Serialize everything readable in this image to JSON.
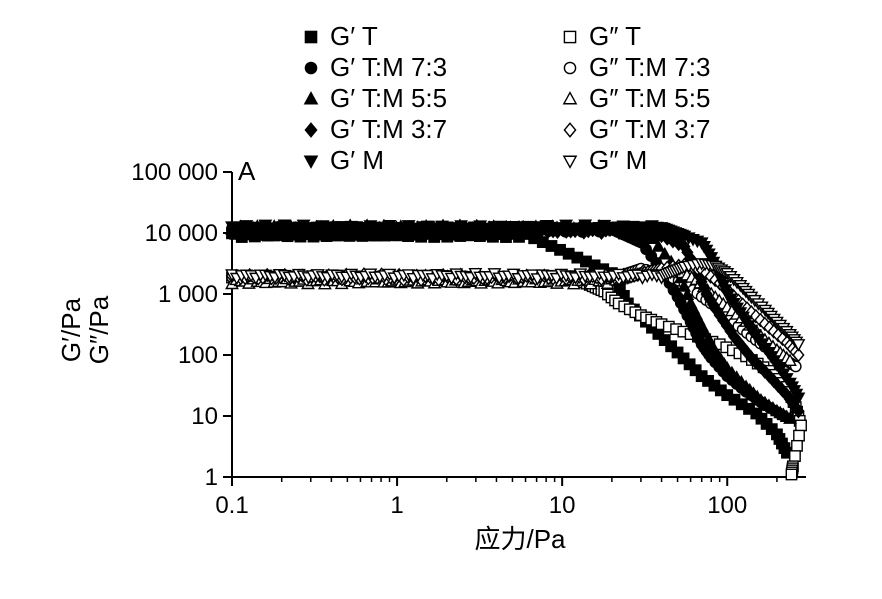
{
  "chart_data": {
    "type": "scatter",
    "panel_label": "A",
    "xlabel": "应力/Pa",
    "ylabel_lines": [
      "G′/Pa",
      "G″/Pa"
    ],
    "x_scale": "log",
    "y_scale": "log",
    "xlim": [
      0.1,
      300
    ],
    "ylim": [
      1,
      100000
    ],
    "x_ticks": [
      {
        "value": 0.1,
        "label": "0.1"
      },
      {
        "value": 1,
        "label": "1"
      },
      {
        "value": 10,
        "label": "10"
      },
      {
        "value": 100,
        "label": "100"
      }
    ],
    "y_ticks": [
      {
        "value": 1,
        "label": "1"
      },
      {
        "value": 10,
        "label": "10"
      },
      {
        "value": 100,
        "label": "100"
      },
      {
        "value": 1000,
        "label": "1 000"
      },
      {
        "value": 10000,
        "label": "10 000"
      },
      {
        "value": 100000,
        "label": "100 000"
      }
    ],
    "grid": false,
    "legend_position": "top",
    "series": [
      {
        "name": "G′ T",
        "marker": "square",
        "filled": true,
        "color": "#000000",
        "plateau": 9500,
        "plateau_end": 6,
        "break": 20,
        "break_value": 2200,
        "points": [
          [
            25,
            700
          ],
          [
            35,
            280
          ],
          [
            50,
            110
          ],
          [
            70,
            45
          ],
          [
            100,
            22
          ],
          [
            150,
            11
          ],
          [
            200,
            5
          ],
          [
            230,
            2.5
          ]
        ]
      },
      {
        "name": "G″ T",
        "marker": "square",
        "filled": false,
        "color": "#000000",
        "plateau": 1800,
        "plateau_end": 12,
        "break": 18,
        "break_value": 1100,
        "points": [
          [
            22,
            700
          ],
          [
            30,
            450
          ],
          [
            40,
            320
          ],
          [
            60,
            220
          ],
          [
            90,
            150
          ],
          [
            130,
            95
          ],
          [
            180,
            55
          ],
          [
            230,
            30
          ],
          [
            260,
            14
          ],
          [
            280,
            7
          ],
          [
            250,
            1.5
          ],
          [
            245,
            1.1
          ]
        ]
      },
      {
        "name": "G′ T:M 7:3",
        "marker": "circle",
        "filled": true,
        "color": "#000000",
        "plateau": 11500,
        "plateau_end": 20,
        "break": 30,
        "break_value": 7000,
        "points": [
          [
            40,
            2500
          ],
          [
            50,
            900
          ],
          [
            60,
            350
          ],
          [
            70,
            150
          ],
          [
            80,
            90
          ],
          [
            100,
            45
          ],
          [
            130,
            25
          ],
          [
            170,
            15
          ],
          [
            220,
            10
          ]
        ]
      },
      {
        "name": "G″ T:M 7:3",
        "marker": "circle",
        "filled": false,
        "color": "#000000",
        "plateau": 1800,
        "plateau_end": 20,
        "break": 30,
        "break_value": 2600,
        "points": [
          [
            40,
            2200
          ],
          [
            55,
            1500
          ],
          [
            70,
            900
          ],
          [
            90,
            550
          ],
          [
            110,
            340
          ],
          [
            140,
            200
          ],
          [
            180,
            120
          ],
          [
            230,
            80
          ],
          [
            260,
            65
          ]
        ]
      },
      {
        "name": "G′ T:M 5:5",
        "marker": "triangle-up",
        "filled": true,
        "color": "#000000",
        "plateau": 12000,
        "plateau_end": 20,
        "break": 35,
        "break_value": 8000,
        "points": [
          [
            50,
            2500
          ],
          [
            60,
            700
          ],
          [
            70,
            300
          ],
          [
            85,
            110
          ],
          [
            100,
            60
          ],
          [
            130,
            30
          ],
          [
            160,
            18
          ],
          [
            200,
            12
          ],
          [
            240,
            9
          ]
        ]
      },
      {
        "name": "G″ T:M 5:5",
        "marker": "triangle-up",
        "filled": false,
        "color": "#000000",
        "plateau": 1600,
        "plateau_end": 20,
        "break": 35,
        "break_value": 2400,
        "points": [
          [
            50,
            2400
          ],
          [
            65,
            1700
          ],
          [
            80,
            1000
          ],
          [
            100,
            600
          ],
          [
            130,
            350
          ],
          [
            160,
            200
          ],
          [
            200,
            120
          ],
          [
            240,
            80
          ]
        ]
      },
      {
        "name": "G′ T:M 3:7",
        "marker": "diamond",
        "filled": true,
        "color": "#000000",
        "plateau": 11000,
        "plateau_end": 25,
        "break": 40,
        "break_value": 9000,
        "points": [
          [
            55,
            6000
          ],
          [
            65,
            2500
          ],
          [
            75,
            1000
          ],
          [
            90,
            450
          ],
          [
            110,
            200
          ],
          [
            140,
            90
          ],
          [
            180,
            45
          ],
          [
            230,
            22
          ],
          [
            270,
            12
          ]
        ]
      },
      {
        "name": "G″ T:M 3:7",
        "marker": "diamond",
        "filled": false,
        "color": "#000000",
        "plateau": 1900,
        "plateau_end": 25,
        "break": 40,
        "break_value": 2600,
        "points": [
          [
            55,
            3000
          ],
          [
            70,
            2500
          ],
          [
            90,
            1500
          ],
          [
            110,
            900
          ],
          [
            140,
            500
          ],
          [
            180,
            280
          ],
          [
            230,
            160
          ],
          [
            270,
            100
          ]
        ]
      },
      {
        "name": "G′ M",
        "marker": "triangle-down",
        "filled": true,
        "color": "#000000",
        "plateau": 12500,
        "plateau_end": 40,
        "break": 55,
        "break_value": 9000,
        "points": [
          [
            70,
            7000
          ],
          [
            80,
            4000
          ],
          [
            90,
            2000
          ],
          [
            100,
            1000
          ],
          [
            120,
            500
          ],
          [
            140,
            260
          ],
          [
            170,
            130
          ],
          [
            200,
            70
          ],
          [
            240,
            35
          ],
          [
            270,
            20
          ]
        ]
      },
      {
        "name": "G″ M",
        "marker": "triangle-down",
        "filled": false,
        "color": "#000000",
        "plateau": 2000,
        "plateau_end": 40,
        "break": 55,
        "break_value": 2800,
        "points": [
          [
            70,
            3200
          ],
          [
            85,
            2900
          ],
          [
            100,
            2200
          ],
          [
            120,
            1400
          ],
          [
            140,
            900
          ],
          [
            170,
            550
          ],
          [
            200,
            350
          ],
          [
            240,
            220
          ],
          [
            270,
            150
          ]
        ]
      }
    ]
  }
}
